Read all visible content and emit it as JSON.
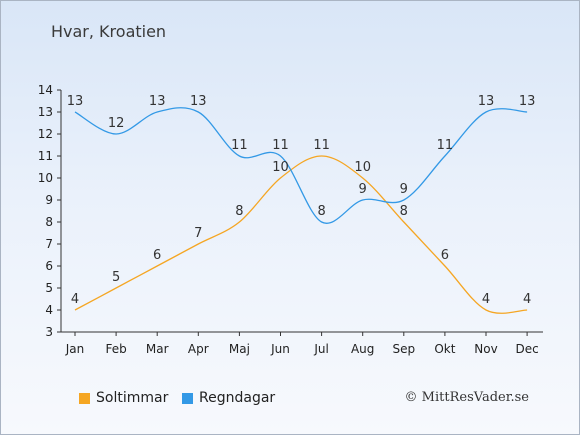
{
  "header": {
    "title": "Hvar, Kroatien"
  },
  "footer": {
    "credit": "© MittResVader.se"
  },
  "chart_data": {
    "type": "line",
    "categories": [
      "Jan",
      "Feb",
      "Mar",
      "Apr",
      "Maj",
      "Jun",
      "Jul",
      "Aug",
      "Sep",
      "Okt",
      "Nov",
      "Dec"
    ],
    "yticks": [
      3,
      4,
      5,
      6,
      7,
      8,
      9,
      10,
      11,
      12,
      13,
      14
    ],
    "ylim": [
      3,
      14
    ],
    "grid": false,
    "legend_position": "bottom-left",
    "series": [
      {
        "name": "Soltimmar",
        "color": "#f5a623",
        "values": [
          4,
          5,
          6,
          7,
          8,
          10,
          11,
          10,
          8,
          6,
          4,
          4
        ]
      },
      {
        "name": "Regndagar",
        "color": "#3399e6",
        "values": [
          13,
          12,
          13,
          13,
          11,
          11,
          8,
          9,
          9,
          11,
          13,
          13
        ]
      }
    ]
  }
}
